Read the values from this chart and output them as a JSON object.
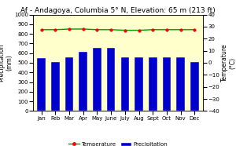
{
  "title": "Af - Andagoya, Columbia 5° N, Elevation: 65 m (213 ft)",
  "months": [
    "Jan",
    "Feb",
    "Mar",
    "Apr",
    "May",
    "June",
    "July",
    "Aug",
    "Sept",
    "Oct",
    "Nov",
    "Dec"
  ],
  "precipitation": [
    550,
    510,
    555,
    615,
    655,
    655,
    555,
    560,
    560,
    560,
    560,
    510
  ],
  "temperature": [
    27.5,
    27.5,
    28.0,
    28.0,
    27.5,
    27.5,
    27.0,
    27.0,
    27.5,
    27.5,
    27.5,
    27.5
  ],
  "precip_ylim": [
    0,
    1000
  ],
  "temp_ylim": [
    -40,
    40
  ],
  "precip_yticks": [
    0,
    100,
    200,
    300,
    400,
    500,
    600,
    700,
    800,
    900,
    1000
  ],
  "temp_yticks": [
    -40,
    -30,
    -20,
    -10,
    0,
    10,
    20,
    30,
    40
  ],
  "precip_color": "#0000cc",
  "temp_line_color": "#009900",
  "temp_marker_color": "#ff0000",
  "bg_color": "#ffffcc",
  "fig_bg_color": "#ffffff",
  "ylabel_left": "Precipitation\n(mm)",
  "ylabel_right": "Temperature\n(°C)",
  "title_fontsize": 6.5,
  "axis_fontsize": 5.5,
  "tick_fontsize": 5.0,
  "legend_fontsize": 5.0
}
